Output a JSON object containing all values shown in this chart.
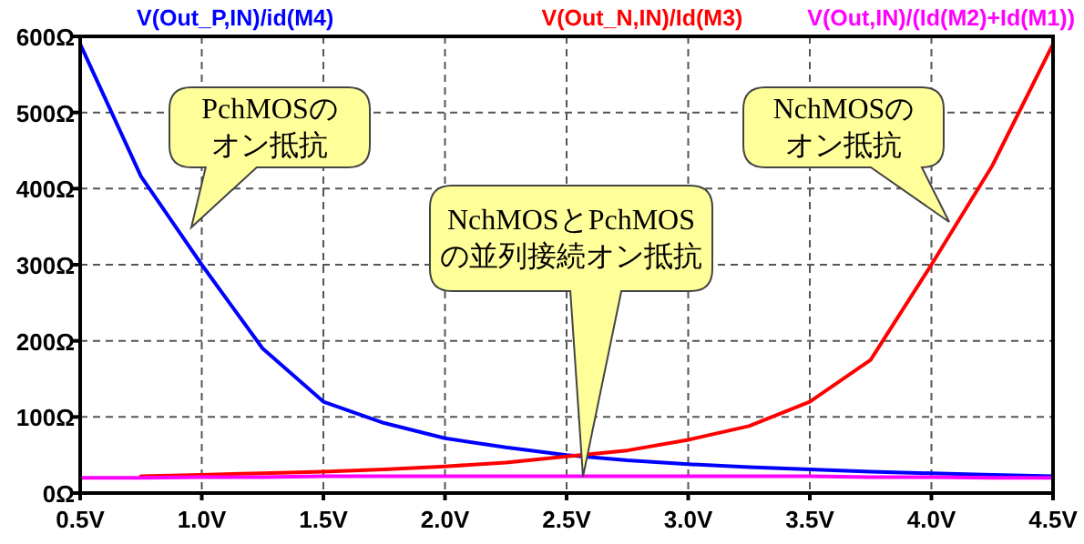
{
  "chart_data": {
    "type": "line",
    "x": [
      0.5,
      0.75,
      1.0,
      1.25,
      1.5,
      1.75,
      2.0,
      2.25,
      2.5,
      2.75,
      3.0,
      3.25,
      3.5,
      3.75,
      4.0,
      4.25,
      4.5
    ],
    "series": [
      {
        "name": "V(Out_P,IN)/id(M4)",
        "color": "#0000ff",
        "values": [
          590,
          416,
          300,
          190,
          120,
          92,
          72,
          60,
          50,
          43,
          38,
          34,
          31,
          28,
          26,
          24,
          22
        ]
      },
      {
        "name": "V(Out_N,IN)/Id(M3)",
        "color": "#ff0000",
        "values": [
          null,
          22,
          24,
          26,
          28,
          31,
          35,
          40,
          48,
          56,
          70,
          88,
          120,
          175,
          300,
          430,
          590
        ]
      },
      {
        "name": "V(Out,IN)/(Id(M2)+Id(M1))",
        "color": "#ff00ff",
        "values": [
          20,
          20,
          21,
          21,
          22,
          22,
          22,
          22,
          22,
          22,
          22,
          22,
          22,
          21,
          21,
          20,
          20
        ]
      }
    ],
    "xlim": [
      0.5,
      4.5
    ],
    "ylim": [
      0,
      600
    ],
    "xticks": [
      {
        "value": 0.5,
        "label": "0.5V"
      },
      {
        "value": 1.0,
        "label": "1.0V"
      },
      {
        "value": 1.5,
        "label": "1.5V"
      },
      {
        "value": 2.0,
        "label": "2.0V"
      },
      {
        "value": 2.5,
        "label": "2.5V"
      },
      {
        "value": 3.0,
        "label": "3.0V"
      },
      {
        "value": 3.5,
        "label": "3.5V"
      },
      {
        "value": 4.0,
        "label": "4.0V"
      },
      {
        "value": 4.5,
        "label": "4.5V"
      }
    ],
    "yticks": [
      {
        "value": 0,
        "label": "0Ω"
      },
      {
        "value": 100,
        "label": "100Ω"
      },
      {
        "value": 200,
        "label": "200Ω"
      },
      {
        "value": 300,
        "label": "300Ω"
      },
      {
        "value": 400,
        "label": "400Ω"
      },
      {
        "value": 500,
        "label": "500Ω"
      },
      {
        "value": 600,
        "label": "600Ω"
      }
    ],
    "grid": true,
    "legend": "top",
    "line_style": "solid",
    "marker": "none",
    "annotations": [
      "PchMOSのオン抵抗",
      "NchMOSのオン抵抗",
      "NchMOSとPchMOSの並列接続オン抵抗"
    ]
  }
}
